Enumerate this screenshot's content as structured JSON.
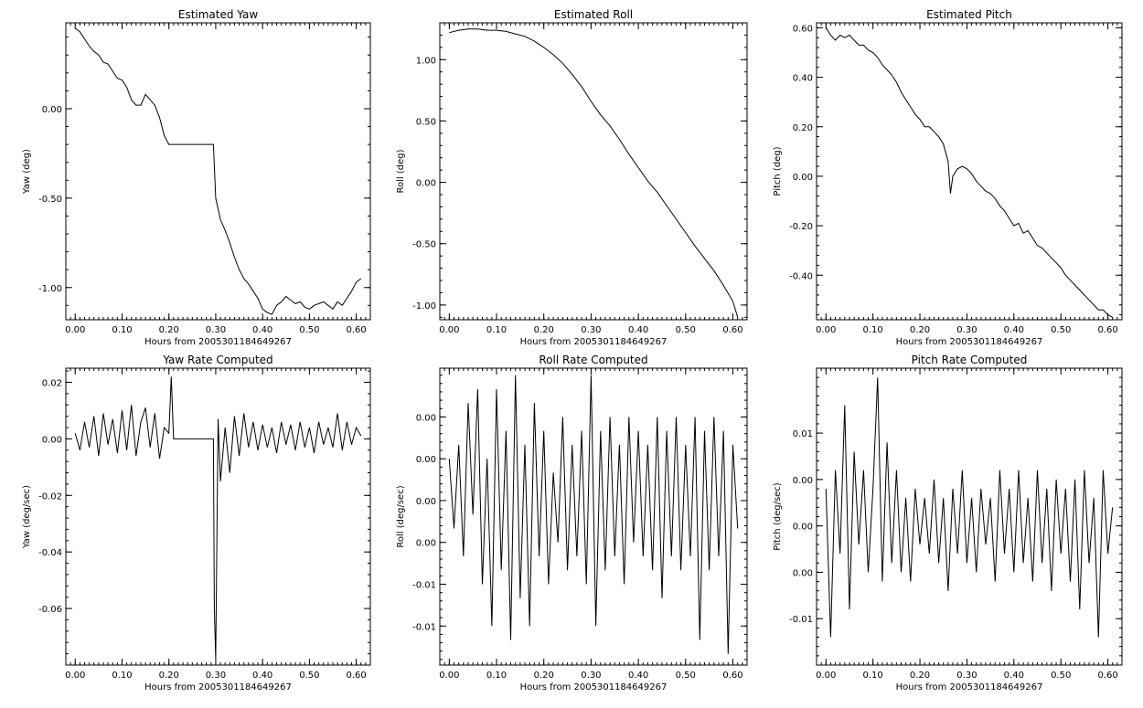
{
  "figure": {
    "background": "#ffffff",
    "line_color": "#000000"
  },
  "chart_data": [
    {
      "type": "line",
      "title": "Estimated Yaw",
      "xlabel": "Hours from 2005301184649267",
      "ylabel": "Yaw (deg)",
      "xlim": [
        -0.02,
        0.63
      ],
      "ylim": [
        -1.18,
        0.48
      ],
      "xticks": [
        0.0,
        0.1,
        0.2,
        0.3,
        0.4,
        0.5,
        0.6
      ],
      "xtick_labels": [
        "0.00",
        "0.10",
        "0.20",
        "0.30",
        "0.40",
        "0.50",
        "0.60"
      ],
      "yticks": [
        0.0,
        -0.5,
        -1.0
      ],
      "ytick_labels": [
        "0.00",
        "-0.50",
        "-1.00"
      ],
      "series": [
        {
          "x": [
            0.0,
            0.01,
            0.02,
            0.03,
            0.04,
            0.05,
            0.06,
            0.07,
            0.08,
            0.09,
            0.1,
            0.11,
            0.12,
            0.13,
            0.14,
            0.15,
            0.16,
            0.17,
            0.18,
            0.19,
            0.2,
            0.21,
            0.22,
            0.23,
            0.24,
            0.25,
            0.26,
            0.27,
            0.28,
            0.29,
            0.295,
            0.3,
            0.31,
            0.32,
            0.33,
            0.34,
            0.35,
            0.36,
            0.37,
            0.38,
            0.39,
            0.4,
            0.41,
            0.42,
            0.43,
            0.44,
            0.45,
            0.46,
            0.47,
            0.48,
            0.49,
            0.5,
            0.51,
            0.52,
            0.53,
            0.54,
            0.55,
            0.56,
            0.57,
            0.58,
            0.59,
            0.6,
            0.61
          ],
          "y": [
            0.45,
            0.43,
            0.39,
            0.35,
            0.32,
            0.3,
            0.26,
            0.25,
            0.21,
            0.17,
            0.16,
            0.12,
            0.05,
            0.02,
            0.02,
            0.08,
            0.05,
            0.02,
            -0.05,
            -0.15,
            -0.2,
            -0.2,
            -0.2,
            -0.2,
            -0.2,
            -0.2,
            -0.2,
            -0.2,
            -0.2,
            -0.2,
            -0.2,
            -0.5,
            -0.62,
            -0.68,
            -0.75,
            -0.83,
            -0.9,
            -0.95,
            -0.98,
            -1.02,
            -1.06,
            -1.12,
            -1.14,
            -1.15,
            -1.1,
            -1.08,
            -1.05,
            -1.07,
            -1.09,
            -1.08,
            -1.11,
            -1.12,
            -1.1,
            -1.09,
            -1.08,
            -1.1,
            -1.12,
            -1.08,
            -1.1,
            -1.06,
            -1.02,
            -0.97,
            -0.95
          ]
        }
      ]
    },
    {
      "type": "line",
      "title": "Estimated Roll",
      "xlabel": "Hours from 2005301184649267",
      "ylabel": "Roll (deg)",
      "xlim": [
        -0.02,
        0.63
      ],
      "ylim": [
        -1.12,
        1.3
      ],
      "xticks": [
        0.0,
        0.1,
        0.2,
        0.3,
        0.4,
        0.5,
        0.6
      ],
      "xtick_labels": [
        "0.00",
        "0.10",
        "0.20",
        "0.30",
        "0.40",
        "0.50",
        "0.60"
      ],
      "yticks": [
        1.0,
        0.5,
        0.0,
        -0.5,
        -1.0
      ],
      "ytick_labels": [
        "1.00",
        "0.50",
        "0.00",
        "-0.50",
        "-1.00"
      ],
      "series": [
        {
          "x": [
            0.0,
            0.02,
            0.04,
            0.06,
            0.08,
            0.1,
            0.12,
            0.14,
            0.16,
            0.18,
            0.2,
            0.22,
            0.24,
            0.26,
            0.28,
            0.3,
            0.32,
            0.34,
            0.36,
            0.38,
            0.4,
            0.42,
            0.44,
            0.46,
            0.48,
            0.5,
            0.52,
            0.54,
            0.56,
            0.58,
            0.6,
            0.61
          ],
          "y": [
            1.22,
            1.24,
            1.25,
            1.25,
            1.24,
            1.24,
            1.23,
            1.21,
            1.19,
            1.15,
            1.1,
            1.04,
            0.97,
            0.88,
            0.78,
            0.66,
            0.55,
            0.46,
            0.35,
            0.23,
            0.12,
            0.01,
            -0.08,
            -0.19,
            -0.3,
            -0.41,
            -0.52,
            -0.62,
            -0.72,
            -0.84,
            -0.97,
            -1.1
          ]
        }
      ]
    },
    {
      "type": "line",
      "title": "Estimated Pitch",
      "xlabel": "Hours from 2005301184649267",
      "ylabel": "Pitch (deg)",
      "xlim": [
        -0.02,
        0.63
      ],
      "ylim": [
        -0.58,
        0.62
      ],
      "xticks": [
        0.0,
        0.1,
        0.2,
        0.3,
        0.4,
        0.5,
        0.6
      ],
      "xtick_labels": [
        "0.00",
        "0.10",
        "0.20",
        "0.30",
        "0.40",
        "0.50",
        "0.60"
      ],
      "yticks": [
        0.6,
        0.4,
        0.2,
        0.0,
        -0.2,
        -0.4
      ],
      "ytick_labels": [
        "0.60",
        "0.40",
        "0.20",
        "0.00",
        "-0.20",
        "-0.40"
      ],
      "series": [
        {
          "x": [
            0.0,
            0.01,
            0.02,
            0.03,
            0.04,
            0.05,
            0.06,
            0.07,
            0.08,
            0.09,
            0.1,
            0.11,
            0.12,
            0.13,
            0.14,
            0.15,
            0.16,
            0.17,
            0.18,
            0.19,
            0.2,
            0.21,
            0.22,
            0.23,
            0.24,
            0.25,
            0.26,
            0.265,
            0.27,
            0.28,
            0.29,
            0.3,
            0.31,
            0.32,
            0.33,
            0.34,
            0.35,
            0.36,
            0.37,
            0.38,
            0.39,
            0.4,
            0.41,
            0.42,
            0.43,
            0.44,
            0.45,
            0.46,
            0.47,
            0.48,
            0.49,
            0.5,
            0.51,
            0.52,
            0.53,
            0.54,
            0.55,
            0.56,
            0.57,
            0.58,
            0.59,
            0.6,
            0.61
          ],
          "y": [
            0.6,
            0.57,
            0.55,
            0.57,
            0.56,
            0.57,
            0.55,
            0.53,
            0.53,
            0.51,
            0.5,
            0.48,
            0.45,
            0.43,
            0.41,
            0.38,
            0.34,
            0.31,
            0.28,
            0.25,
            0.23,
            0.2,
            0.2,
            0.18,
            0.16,
            0.13,
            0.06,
            -0.07,
            0.0,
            0.03,
            0.04,
            0.03,
            0.01,
            -0.02,
            -0.04,
            -0.06,
            -0.07,
            -0.09,
            -0.12,
            -0.14,
            -0.17,
            -0.2,
            -0.19,
            -0.23,
            -0.22,
            -0.25,
            -0.28,
            -0.29,
            -0.31,
            -0.33,
            -0.35,
            -0.37,
            -0.4,
            -0.42,
            -0.44,
            -0.46,
            -0.48,
            -0.5,
            -0.52,
            -0.54,
            -0.54,
            -0.56,
            -0.57
          ]
        }
      ]
    },
    {
      "type": "line",
      "title": "Yaw Rate Computed",
      "xlabel": "Hours from 2005301184649267",
      "ylabel": "Yaw (deg/sec)",
      "xlim": [
        -0.02,
        0.63
      ],
      "ylim": [
        -0.08,
        0.025
      ],
      "xticks": [
        0.0,
        0.1,
        0.2,
        0.3,
        0.4,
        0.5,
        0.6
      ],
      "xtick_labels": [
        "0.00",
        "0.10",
        "0.20",
        "0.30",
        "0.40",
        "0.50",
        "0.60"
      ],
      "yticks": [
        0.02,
        0.0,
        -0.02,
        -0.04,
        -0.06
      ],
      "ytick_labels": [
        "0.02",
        "0.00",
        "-0.02",
        "-0.04",
        "-0.06"
      ],
      "series": [
        {
          "x": [
            0.0,
            0.01,
            0.02,
            0.03,
            0.04,
            0.05,
            0.06,
            0.07,
            0.08,
            0.09,
            0.1,
            0.11,
            0.12,
            0.13,
            0.14,
            0.15,
            0.16,
            0.17,
            0.18,
            0.19,
            0.2,
            0.205,
            0.21,
            0.22,
            0.25,
            0.29,
            0.295,
            0.297,
            0.3,
            0.305,
            0.31,
            0.32,
            0.33,
            0.34,
            0.35,
            0.36,
            0.37,
            0.38,
            0.39,
            0.4,
            0.41,
            0.42,
            0.43,
            0.44,
            0.45,
            0.46,
            0.47,
            0.48,
            0.49,
            0.5,
            0.51,
            0.52,
            0.53,
            0.54,
            0.55,
            0.56,
            0.57,
            0.58,
            0.59,
            0.6,
            0.61
          ],
          "y": [
            0.002,
            -0.004,
            0.006,
            -0.003,
            0.008,
            -0.006,
            0.009,
            -0.002,
            0.007,
            -0.005,
            0.01,
            -0.004,
            0.012,
            -0.006,
            0.006,
            0.011,
            -0.003,
            0.009,
            -0.007,
            0.004,
            0.002,
            0.022,
            0.0,
            0.0,
            0.0,
            0.0,
            0.0,
            -0.06,
            -0.078,
            0.007,
            -0.015,
            0.004,
            -0.012,
            0.008,
            -0.006,
            0.009,
            -0.003,
            0.006,
            -0.004,
            0.005,
            -0.003,
            0.004,
            -0.005,
            0.006,
            -0.002,
            0.005,
            -0.004,
            0.006,
            -0.003,
            0.004,
            -0.005,
            0.006,
            -0.002,
            0.004,
            -0.003,
            0.009,
            -0.004,
            0.006,
            -0.002,
            0.004,
            0.001
          ]
        }
      ]
    },
    {
      "type": "line",
      "title": "Roll Rate Computed",
      "xlabel": "Hours from 2005301184649267",
      "ylabel": "Roll (deg/sec)",
      "xlim": [
        -0.02,
        0.63
      ],
      "ylim": [
        -0.0138,
        0.0075
      ],
      "xticks": [
        0.0,
        0.1,
        0.2,
        0.3,
        0.4,
        0.5,
        0.6
      ],
      "xtick_labels": [
        "0.00",
        "0.10",
        "0.20",
        "0.30",
        "0.40",
        "0.50",
        "0.60"
      ],
      "yticks": [
        0.004,
        0.001,
        -0.002,
        -0.005,
        -0.008,
        -0.011
      ],
      "ytick_labels": [
        "0.00",
        "0.00",
        "0.00",
        "0.00",
        "-0.01",
        "-0.01"
      ],
      "series": [
        {
          "x": [
            0.0,
            0.01,
            0.02,
            0.03,
            0.04,
            0.05,
            0.06,
            0.07,
            0.08,
            0.09,
            0.1,
            0.11,
            0.12,
            0.13,
            0.14,
            0.15,
            0.16,
            0.17,
            0.18,
            0.19,
            0.2,
            0.21,
            0.22,
            0.23,
            0.24,
            0.25,
            0.26,
            0.27,
            0.28,
            0.29,
            0.3,
            0.31,
            0.32,
            0.33,
            0.34,
            0.35,
            0.36,
            0.37,
            0.38,
            0.39,
            0.4,
            0.41,
            0.42,
            0.43,
            0.44,
            0.45,
            0.46,
            0.47,
            0.48,
            0.49,
            0.5,
            0.51,
            0.52,
            0.53,
            0.54,
            0.55,
            0.56,
            0.57,
            0.58,
            0.59,
            0.6,
            0.61
          ],
          "y": [
            0.001,
            -0.004,
            0.002,
            -0.006,
            0.005,
            -0.003,
            0.006,
            -0.008,
            0.001,
            -0.011,
            0.006,
            -0.007,
            0.003,
            -0.012,
            0.007,
            -0.009,
            0.002,
            -0.011,
            0.005,
            -0.006,
            0.003,
            -0.008,
            0.0,
            -0.005,
            0.004,
            -0.007,
            0.002,
            -0.006,
            0.003,
            -0.008,
            0.007,
            -0.011,
            0.003,
            -0.007,
            0.004,
            -0.006,
            0.002,
            -0.008,
            0.004,
            -0.005,
            0.003,
            -0.006,
            0.002,
            -0.007,
            0.004,
            -0.009,
            0.003,
            -0.006,
            0.004,
            -0.007,
            0.002,
            -0.006,
            0.004,
            -0.012,
            0.003,
            -0.007,
            0.004,
            -0.006,
            0.003,
            -0.013,
            0.002,
            -0.004
          ]
        }
      ]
    },
    {
      "type": "line",
      "title": "Pitch Rate Computed",
      "xlabel": "Hours from 2005301184649267",
      "ylabel": "Pitch (deg/sec)",
      "xlim": [
        -0.02,
        0.63
      ],
      "ylim": [
        -0.015,
        0.017
      ],
      "xticks": [
        0.0,
        0.1,
        0.2,
        0.3,
        0.4,
        0.5,
        0.6
      ],
      "xtick_labels": [
        "0.00",
        "0.10",
        "0.20",
        "0.30",
        "0.40",
        "0.50",
        "0.60"
      ],
      "yticks": [
        0.01,
        0.005,
        0.0,
        -0.005,
        -0.01
      ],
      "ytick_labels": [
        "0.01",
        "0.00",
        "0.00",
        "0.00",
        "-0.01"
      ],
      "series": [
        {
          "x": [
            0.0,
            0.01,
            0.02,
            0.03,
            0.04,
            0.05,
            0.06,
            0.07,
            0.08,
            0.09,
            0.1,
            0.11,
            0.12,
            0.13,
            0.14,
            0.15,
            0.16,
            0.17,
            0.18,
            0.19,
            0.2,
            0.21,
            0.22,
            0.23,
            0.24,
            0.25,
            0.26,
            0.27,
            0.28,
            0.29,
            0.3,
            0.31,
            0.32,
            0.33,
            0.34,
            0.35,
            0.36,
            0.37,
            0.38,
            0.39,
            0.4,
            0.41,
            0.42,
            0.43,
            0.44,
            0.45,
            0.46,
            0.47,
            0.48,
            0.49,
            0.5,
            0.51,
            0.52,
            0.53,
            0.54,
            0.55,
            0.56,
            0.57,
            0.58,
            0.59,
            0.6,
            0.61
          ],
          "y": [
            0.004,
            -0.012,
            0.006,
            -0.003,
            0.013,
            -0.009,
            0.008,
            -0.002,
            0.006,
            -0.005,
            0.004,
            0.016,
            -0.006,
            0.009,
            -0.004,
            0.006,
            -0.005,
            0.003,
            -0.006,
            0.004,
            -0.002,
            0.003,
            -0.003,
            0.005,
            -0.004,
            0.003,
            -0.007,
            0.004,
            -0.003,
            0.006,
            -0.004,
            0.003,
            -0.005,
            0.004,
            -0.002,
            0.003,
            -0.006,
            0.006,
            -0.003,
            0.004,
            -0.005,
            0.006,
            -0.004,
            0.003,
            -0.006,
            0.006,
            -0.004,
            0.004,
            -0.007,
            0.005,
            -0.003,
            0.004,
            -0.006,
            0.005,
            -0.009,
            0.006,
            -0.004,
            0.003,
            -0.012,
            0.006,
            -0.003,
            0.002
          ]
        }
      ]
    }
  ]
}
